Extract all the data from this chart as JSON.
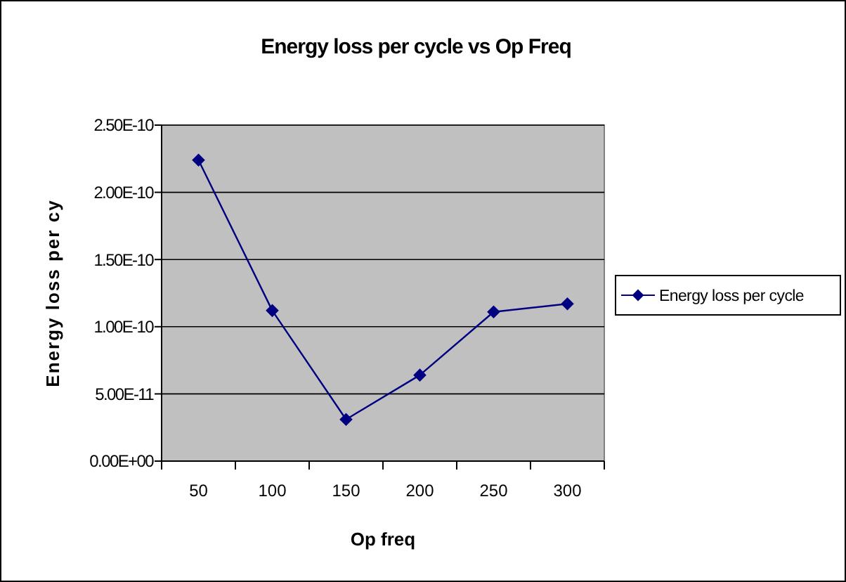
{
  "chart_data": {
    "type": "line",
    "title": "Energy loss per cycle vs Op Freq",
    "xlabel": "Op freq",
    "ylabel": "Energy loss per cy",
    "categories": [
      "50",
      "100",
      "150",
      "200",
      "250",
      "300"
    ],
    "series": [
      {
        "name": "Energy loss per cycle",
        "color": "#000080",
        "values": [
          2.24e-10,
          1.12e-10,
          3.1e-11,
          6.4e-11,
          1.11e-10,
          1.17e-10
        ]
      }
    ],
    "ylim": [
      0,
      2.5e-10
    ],
    "yticks": [
      {
        "value": 0,
        "label": "0.00E+00"
      },
      {
        "value": 5e-11,
        "label": "5.00E-11"
      },
      {
        "value": 1e-10,
        "label": "1.00E-10"
      },
      {
        "value": 1.5e-10,
        "label": "1.50E-10"
      },
      {
        "value": 2e-10,
        "label": "2.00E-10"
      },
      {
        "value": 2.5e-10,
        "label": "2.50E-10"
      }
    ],
    "grid": "y",
    "legend": "right",
    "marker": "diamond",
    "line_style": "solid"
  }
}
